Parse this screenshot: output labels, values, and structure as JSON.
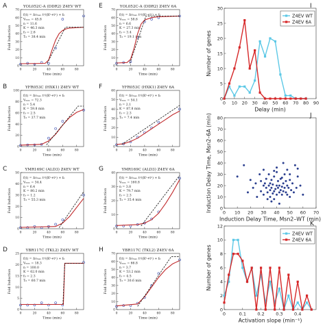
{
  "chart_data": [
    {
      "panel": "A",
      "type": "line",
      "title": "YOL052C-A (DDR2) Z4EV WT",
      "xlabel": "Time (min)",
      "ylabel": "Fold Induction",
      "xlim": [
        0,
        90
      ],
      "ylim": [
        0,
        70
      ],
      "xticks": [
        0,
        20,
        40,
        60,
        80
      ],
      "yticks": [
        0,
        10,
        20,
        30,
        40,
        50,
        60,
        70
      ],
      "params": [
        "f(t) = Δvₘₐₓ tⁿ/(Kⁿ+tⁿ) + f₀",
        "Vₘₐₓ = 45.8",
        "n = 11.6",
        "K = 46.3 min",
        "f₀ = 2.6",
        "T₀ = 38.4 min"
      ],
      "series": [
        {
          "style": "data",
          "x": [
            0,
            10,
            20,
            30,
            40,
            50,
            60,
            90
          ],
          "y": [
            2,
            3,
            2,
            4,
            3,
            22,
            58,
            62
          ]
        },
        {
          "style": "fit",
          "x": [
            0,
            35,
            40,
            45,
            50,
            55,
            60,
            65,
            70,
            90
          ],
          "y": [
            2.6,
            3,
            7,
            20,
            32,
            40,
            44,
            46,
            47,
            48
          ]
        },
        {
          "style": "tangent",
          "x": [
            38,
            64,
            90
          ],
          "y": [
            3,
            48,
            48
          ]
        }
      ]
    },
    {
      "panel": "B",
      "type": "line",
      "title": "YFR053C (HXK1) Z4EV WT",
      "xlabel": "Time (min)",
      "ylabel": "Fold Induction",
      "xlim": [
        0,
        90
      ],
      "ylim": [
        0,
        100
      ],
      "xticks": [
        0,
        20,
        40,
        60,
        80
      ],
      "yticks": [
        0,
        20,
        40,
        60,
        80,
        100
      ],
      "params": [
        "f(t) = Δvₘₐₓ tⁿ/(Kⁿ+tⁿ) + f₀",
        "Vₘₐₓ = 72.3",
        "n = 5.4",
        "K = 59.8 min",
        "f₀ = 2.5",
        "T₀ = 37.7 min"
      ],
      "series": [
        {
          "style": "data",
          "x": [
            0,
            10,
            20,
            30,
            40,
            50,
            60,
            90
          ],
          "y": [
            2,
            3,
            3,
            4,
            15,
            32,
            45,
            65
          ]
        },
        {
          "style": "fit",
          "x": [
            0,
            30,
            40,
            50,
            60,
            70,
            80,
            90
          ],
          "y": [
            2.5,
            4,
            10,
            22,
            38,
            52,
            61,
            66
          ]
        },
        {
          "style": "tangent",
          "x": [
            37,
            82,
            90
          ],
          "y": [
            3,
            72,
            72
          ]
        }
      ]
    },
    {
      "panel": "C",
      "type": "line",
      "title": "YMR169C (ALD3) Z4EV WT",
      "xlabel": "Time (min)",
      "ylabel": "Fold Induction",
      "xlim": [
        0,
        90
      ],
      "ylim": [
        0,
        50
      ],
      "xticks": [
        0,
        20,
        40,
        60,
        80
      ],
      "yticks": [
        0,
        10,
        20,
        30,
        40,
        50
      ],
      "params": [
        "f(t) = Δvₘₐₓ tⁿ/(Kⁿ+tⁿ) + f₀",
        "Vₘₐₓ = 34.4",
        "n = 6.4",
        "K = 80.2 min",
        "f₀ = 1.2",
        "T₀ = 55.3 min"
      ],
      "series": [
        {
          "style": "data",
          "x": [
            0,
            10,
            20,
            30,
            40,
            50,
            60,
            90
          ],
          "y": [
            1,
            1,
            2,
            1,
            2,
            4,
            8,
            30
          ]
        },
        {
          "style": "fit",
          "x": [
            0,
            50,
            60,
            70,
            80,
            90
          ],
          "y": [
            1.2,
            2,
            5,
            11,
            19,
            27
          ]
        },
        {
          "style": "tangent",
          "x": [
            55,
            90
          ],
          "y": [
            1,
            33
          ]
        }
      ]
    },
    {
      "panel": "D",
      "type": "line",
      "title": "YBR117C (TKL2) Z4EV WT",
      "xlabel": "Time (min)",
      "ylabel": "Fold Induction",
      "xlim": [
        0,
        90
      ],
      "ylim": [
        0,
        25
      ],
      "xticks": [
        0,
        20,
        40,
        60,
        80
      ],
      "yticks": [
        0,
        5,
        10,
        15,
        20,
        25
      ],
      "params": [
        "f(t) = Δvₘₐₓ tⁿ/(Kⁿ+tⁿ) + f₀",
        "Vₘₐₓ = 18.3",
        "n = 100.0",
        "K = 62.0 min",
        "f₀ = 2.3",
        "T₀ = 60.7 min"
      ],
      "series": [
        {
          "style": "data",
          "x": [
            0,
            10,
            20,
            30,
            40,
            50,
            60,
            90
          ],
          "y": [
            2,
            2,
            2,
            3,
            2,
            3,
            2,
            21
          ]
        },
        {
          "style": "fit",
          "x": [
            0,
            61,
            62,
            63,
            90
          ],
          "y": [
            2.3,
            2.3,
            11,
            20.6,
            20.6
          ]
        },
        {
          "style": "tangent",
          "x": [
            60.5,
            63,
            90
          ],
          "y": [
            2.3,
            20.6,
            20.6
          ]
        }
      ]
    },
    {
      "panel": "E",
      "type": "line",
      "title": "YOL052C-A (DDR2) Z4EV 6A",
      "xlabel": "Time (min)",
      "ylabel": "Fold Induction",
      "xlim": [
        0,
        90
      ],
      "ylim": [
        0,
        70
      ],
      "xticks": [
        0,
        20,
        40,
        60,
        80
      ],
      "yticks": [
        0,
        10,
        20,
        30,
        40,
        50,
        60,
        70
      ],
      "params": [
        "f(t) = Δvₘₐₓ tⁿ/(Kⁿ+tⁿ) + f₀",
        "Vₘₐₓ = 58.6",
        "n = 6.6",
        "K = 27.3 min",
        "f₀ = 3.4",
        "T₀ = 19.1 min"
      ],
      "series": [
        {
          "style": "data",
          "x": [
            0,
            10,
            20,
            30,
            40,
            50,
            60,
            90
          ],
          "y": [
            3,
            4,
            5,
            35,
            55,
            58,
            60,
            62
          ]
        },
        {
          "style": "fit",
          "x": [
            0,
            15,
            20,
            25,
            30,
            35,
            40,
            50,
            60,
            90
          ],
          "y": [
            3.4,
            4,
            8,
            22,
            40,
            52,
            57,
            60,
            61,
            62
          ]
        },
        {
          "style": "tangent",
          "x": [
            19,
            42,
            90
          ],
          "y": [
            3,
            62,
            62
          ]
        }
      ]
    },
    {
      "panel": "F",
      "type": "line",
      "title": "YFR053C (HXK1) Z4EV 6A",
      "xlabel": "Time (min)",
      "ylabel": "Fold Induction",
      "xlim": [
        0,
        90
      ],
      "ylim": [
        0,
        60
      ],
      "xticks": [
        0,
        20,
        40,
        60,
        80
      ],
      "yticks": [
        0,
        10,
        20,
        30,
        40,
        50,
        60
      ],
      "params": [
        "f(t) = Δvₘₐₓ tⁿ/(Kⁿ+tⁿ) + f₀",
        "Vₘₐₓ = 54.1",
        "n = 2.1",
        "K = 87.8 min",
        "f₀ = 2.3",
        "T₀ = 7.4 min"
      ],
      "series": [
        {
          "style": "data",
          "x": [
            0,
            10,
            20,
            30,
            40,
            50,
            60,
            90
          ],
          "y": [
            2,
            3,
            5,
            10,
            15,
            20,
            26,
            40
          ]
        },
        {
          "style": "fit",
          "x": [
            0,
            10,
            20,
            30,
            40,
            50,
            60,
            70,
            80,
            90
          ],
          "y": [
            2.3,
            3,
            5.5,
            9,
            14,
            19,
            24,
            29,
            34,
            38
          ]
        },
        {
          "style": "tangent",
          "x": [
            7.4,
            90
          ],
          "y": [
            2.3,
            44
          ]
        }
      ]
    },
    {
      "panel": "G",
      "type": "line",
      "title": "YMR169C (ALD3) Z4EV 6A",
      "xlabel": "Time (min)",
      "ylabel": "Fold Induction",
      "xlim": [
        0,
        90
      ],
      "ylim": [
        0,
        40
      ],
      "xticks": [
        0,
        20,
        40,
        60,
        80
      ],
      "yticks": [
        0,
        10,
        20,
        30,
        40
      ],
      "params": [
        "f(t) = Δvₘₐₓ tⁿ/(Kⁿ+tⁿ) + f₀",
        "Vₘₐₓ = 160.8",
        "n = 3.8",
        "K = 79.7 min",
        "f₀ = 2.3",
        "T₀ = 35.4 min"
      ],
      "series": [
        {
          "style": "data",
          "x": [
            0,
            10,
            20,
            30,
            40,
            50,
            60,
            90
          ],
          "y": [
            2,
            2,
            2,
            3,
            4,
            7,
            12,
            36
          ]
        },
        {
          "style": "fit",
          "x": [
            0,
            30,
            40,
            50,
            60,
            70,
            80,
            90
          ],
          "y": [
            2.3,
            3,
            4,
            6.5,
            11,
            18,
            26,
            35
          ]
        },
        {
          "style": "tangent",
          "x": [
            35,
            90
          ],
          "y": [
            2,
            38
          ]
        }
      ]
    },
    {
      "panel": "H",
      "type": "line",
      "title": "YBR117C (TKL2) Z4EV 6A",
      "xlabel": "Time (min)",
      "ylabel": "Fold Induction",
      "xlim": [
        0,
        90
      ],
      "ylim": [
        0,
        70
      ],
      "xticks": [
        0,
        20,
        40,
        60,
        80
      ],
      "yticks": [
        0,
        10,
        20,
        30,
        40,
        50,
        60,
        70
      ],
      "params": [
        "f(t) = Δvₘₐₓ tⁿ/(Kⁿ+tⁿ) + f₀",
        "Vₘₐₓ = 66.8",
        "n = 3.7",
        "K = 53.2 min",
        "f₀ = 4.5",
        "T₀ = 30.6 min"
      ],
      "series": [
        {
          "style": "data",
          "x": [
            0,
            10,
            20,
            30,
            40,
            50,
            60,
            90
          ],
          "y": [
            4,
            5,
            5,
            8,
            15,
            30,
            45,
            62
          ]
        },
        {
          "style": "fit",
          "x": [
            0,
            30,
            40,
            50,
            60,
            70,
            80,
            90
          ],
          "y": [
            4.5,
            7,
            16,
            28,
            40,
            50,
            57,
            61
          ]
        },
        {
          "style": "tangent",
          "x": [
            30,
            78,
            90
          ],
          "y": [
            4,
            66,
            66
          ]
        }
      ]
    },
    {
      "panel": "I",
      "type": "line",
      "xlabel": "Delay (min)",
      "ylabel": "Number of genes",
      "xlim": [
        0,
        90
      ],
      "ylim": [
        0,
        30
      ],
      "xticks": [
        0,
        10,
        20,
        30,
        40,
        50,
        60,
        70,
        80,
        90
      ],
      "yticks": [
        0,
        5,
        10,
        15,
        20,
        25,
        30
      ],
      "legend": "top-right",
      "series": [
        {
          "name": "Z4EV WT",
          "color": "#5cc8e6",
          "x": [
            0,
            5,
            10,
            15,
            20,
            25,
            30,
            35,
            40,
            45,
            50,
            55,
            60,
            65,
            70,
            75,
            80
          ],
          "y": [
            0,
            4,
            1,
            4,
            4,
            2,
            6,
            19,
            14,
            20,
            19,
            8,
            1,
            1,
            0,
            0,
            0
          ]
        },
        {
          "name": "Z4EV 6A",
          "color": "#d62728",
          "x": [
            0,
            5,
            10,
            15,
            20,
            25,
            30,
            35,
            40,
            45,
            50,
            55,
            60,
            65,
            70,
            75,
            80
          ],
          "y": [
            0,
            5,
            10,
            17,
            26,
            10,
            16,
            2,
            0,
            0,
            0,
            0,
            0,
            0,
            0,
            0,
            0
          ]
        }
      ]
    },
    {
      "panel": "J",
      "type": "scatter",
      "xlabel": "Induction Delay Time, Msn2–WT (min)",
      "ylabel": "Induction Delay Time, Msn2–6A (min)",
      "xlim": [
        0,
        70
      ],
      "ylim": [
        0,
        80
      ],
      "xticks": [
        0,
        10,
        20,
        30,
        40,
        50,
        60,
        70
      ],
      "yticks": [
        0,
        10,
        20,
        30,
        40,
        50,
        60,
        70,
        80
      ],
      "x": [
        10,
        15,
        20,
        22,
        25,
        27,
        28,
        30,
        30,
        31,
        32,
        32,
        33,
        34,
        34,
        35,
        35,
        35,
        36,
        36,
        37,
        37,
        38,
        38,
        38,
        39,
        40,
        40,
        40,
        41,
        41,
        42,
        42,
        43,
        43,
        44,
        44,
        45,
        45,
        46,
        46,
        47,
        47,
        48,
        48,
        49,
        50,
        50,
        51,
        52,
        53,
        55,
        56,
        58,
        60,
        40,
        45,
        48,
        36,
        30,
        18,
        24,
        33,
        42,
        50,
        54,
        38,
        44,
        28,
        56
      ],
      "y": [
        28,
        38,
        25,
        18,
        10,
        30,
        15,
        20,
        12,
        22,
        18,
        26,
        14,
        20,
        30,
        16,
        22,
        10,
        18,
        25,
        13,
        21,
        15,
        28,
        8,
        17,
        12,
        20,
        32,
        18,
        24,
        14,
        20,
        16,
        26,
        12,
        19,
        22,
        15,
        18,
        30,
        14,
        24,
        12,
        20,
        18,
        10,
        25,
        16,
        22,
        14,
        18,
        28,
        20,
        12,
        36,
        40,
        34,
        6,
        34,
        14,
        22,
        8,
        4,
        30,
        38,
        33,
        27,
        24,
        35
      ]
    },
    {
      "panel": "K",
      "type": "line",
      "xlabel": "Activation slope (min⁻¹)",
      "ylabel": "Number of genes",
      "xlim": [
        0,
        0.5
      ],
      "ylim": [
        0,
        12
      ],
      "xticks": [
        0,
        0.1,
        0.2,
        0.3,
        0.4
      ],
      "yticks": [
        0,
        2,
        4,
        6,
        8,
        10,
        12
      ],
      "legend": "top-right",
      "series": [
        {
          "name": "Z4EV WT",
          "color": "#5cc8e6",
          "x": [
            0.0,
            0.025,
            0.05,
            0.075,
            0.1,
            0.125,
            0.15,
            0.175,
            0.2,
            0.225,
            0.25,
            0.275,
            0.3,
            0.325,
            0.35,
            0.375,
            0.4,
            0.425,
            0.45,
            0.475
          ],
          "y": [
            2,
            4,
            10,
            10,
            6,
            4,
            6,
            2,
            5,
            1,
            4,
            1,
            3,
            0,
            2,
            0,
            1,
            0,
            1,
            0
          ]
        },
        {
          "name": "Z4EV 6A",
          "color": "#d62728",
          "x": [
            0.0,
            0.025,
            0.05,
            0.075,
            0.1,
            0.125,
            0.15,
            0.175,
            0.2,
            0.225,
            0.25,
            0.275,
            0.3,
            0.325,
            0.35,
            0.375,
            0.4,
            0.425,
            0.45,
            0.475
          ],
          "y": [
            1,
            5,
            8,
            8,
            7,
            4,
            6,
            0,
            6,
            0,
            6,
            0,
            6,
            0,
            5,
            0,
            4,
            0,
            2,
            0
          ]
        }
      ]
    }
  ]
}
